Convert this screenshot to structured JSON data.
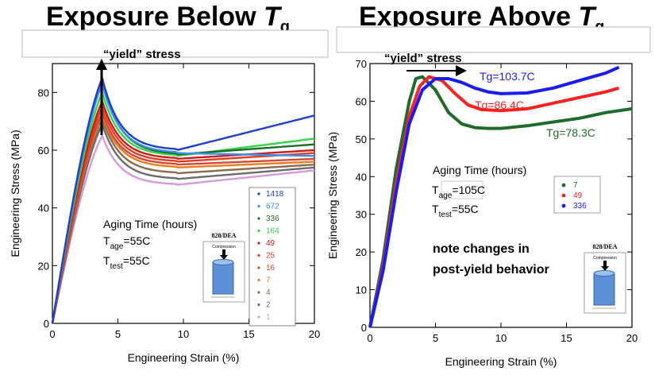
{
  "titles": {
    "left": {
      "main": "Exposure Below ",
      "var": "T",
      "sub": "g"
    },
    "right": {
      "main": "Exposure Above ",
      "var": "T",
      "sub": "g"
    }
  },
  "chart_data": [
    {
      "type": "line",
      "xlabel": "Engineering Strain (%)",
      "ylabel": "Engineering Stress (MPa)",
      "xlim": [
        0,
        20
      ],
      "ylim": [
        0,
        90
      ],
      "xticks": [
        "0",
        "5",
        "10",
        "15",
        "20"
      ],
      "yticks": [
        "0",
        "20",
        "40",
        "60",
        "80"
      ],
      "grid": false,
      "legend_position": "bottom-right",
      "annotations": {
        "yield": "“yield” stress",
        "aging": "Aging Time (hours)",
        "tage_prefix": "T",
        "tage_sub": "age",
        "tage_val": "=55C",
        "ttest_prefix": "T",
        "ttest_sub": "test",
        "ttest_val": "=55C",
        "specimen_label": "828/DEA",
        "compression": "Compression"
      },
      "series": [
        {
          "name": "1418",
          "color": "#1f3fd0",
          "peak": 85,
          "min_y": 60,
          "end": 72
        },
        {
          "name": "672",
          "color": "#3a90e6",
          "peak": 83,
          "min_y": 59,
          "end": 58
        },
        {
          "name": "336",
          "color": "#1e6b2b",
          "peak": 84,
          "min_y": 58.5,
          "end": 62
        },
        {
          "name": "164",
          "color": "#33d645",
          "peak": 80,
          "min_y": 58,
          "end": 64
        },
        {
          "name": "49",
          "color": "#c81e1e",
          "peak": 77,
          "min_y": 57,
          "end": 60
        },
        {
          "name": "25",
          "color": "#e83a1f",
          "peak": 75,
          "min_y": 56,
          "end": 59
        },
        {
          "name": "16",
          "color": "#d04838",
          "peak": 73,
          "min_y": 55,
          "end": 57
        },
        {
          "name": "7",
          "color": "#f07a1e",
          "peak": 72,
          "min_y": 54,
          "end": 56
        },
        {
          "name": "4",
          "color": "#8a6a4a",
          "peak": 71,
          "min_y": 52,
          "end": 55
        },
        {
          "name": "2",
          "color": "#6b6b6b",
          "peak": 69,
          "min_y": 50,
          "end": 54
        },
        {
          "name": "1",
          "color": "#d59ad8",
          "peak": 65,
          "min_y": 48,
          "end": 53
        }
      ]
    },
    {
      "type": "line",
      "xlabel": "Engineering Strain (%)",
      "ylabel": "Engineering Stress (MPa)",
      "xlim": [
        0,
        20
      ],
      "ylim": [
        0,
        70
      ],
      "xticks": [
        "0",
        "5",
        "10",
        "15",
        "20"
      ],
      "yticks": [
        "0",
        "10",
        "20",
        "30",
        "40",
        "50",
        "60",
        "70"
      ],
      "grid": false,
      "legend_position": "middle-right",
      "annotations": {
        "yield": "“yield” stress",
        "aging": "Aging Time (hours)",
        "tage_prefix": "T",
        "tage_sub": "age",
        "tage_val": "=105C",
        "ttest_prefix": "T",
        "ttest_sub": "test",
        "ttest_val": "=55C",
        "note1": "note changes in",
        "note2": "post-yield behavior",
        "specimen_label": "828/DEA",
        "compression": "Compression"
      },
      "series": [
        {
          "name": "7",
          "color": "#1e6b2b",
          "tg_label": "Tg=78.3C",
          "points": [
            [
              0,
              0
            ],
            [
              1,
              18
            ],
            [
              2,
              42
            ],
            [
              3,
              60
            ],
            [
              3.5,
              66
            ],
            [
              4,
              66.5
            ],
            [
              5,
              63
            ],
            [
              6,
              57
            ],
            [
              7,
              54
            ],
            [
              8,
              53
            ],
            [
              9,
              52.8
            ],
            [
              10,
              52.8
            ],
            [
              12,
              53.5
            ],
            [
              14,
              54.5
            ],
            [
              16,
              55.5
            ],
            [
              18,
              57
            ],
            [
              20,
              58
            ]
          ]
        },
        {
          "name": "49",
          "color": "#ff2020",
          "tg_label": "Tg=86.4C",
          "points": [
            [
              0,
              0
            ],
            [
              1,
              16
            ],
            [
              2,
              38
            ],
            [
              3,
              56
            ],
            [
              3.8,
              64
            ],
            [
              4.5,
              66.5
            ],
            [
              5.5,
              65.5
            ],
            [
              6.5,
              62
            ],
            [
              7.5,
              59
            ],
            [
              8.5,
              57.8
            ],
            [
              10,
              57.5
            ],
            [
              12,
              58
            ],
            [
              14,
              59.5
            ],
            [
              16,
              61
            ],
            [
              18,
              62.5
            ],
            [
              19,
              63.5
            ]
          ]
        },
        {
          "name": "336",
          "color": "#1a1aff",
          "tg_label": "Tg=103.7C",
          "points": [
            [
              0,
              0
            ],
            [
              1,
              15
            ],
            [
              2,
              36
            ],
            [
              3,
              54
            ],
            [
              4,
              63
            ],
            [
              5,
              66
            ],
            [
              6,
              66
            ],
            [
              7,
              65
            ],
            [
              8,
              63.5
            ],
            [
              9,
              62.5
            ],
            [
              10,
              62
            ],
            [
              12,
              62.2
            ],
            [
              14,
              63.5
            ],
            [
              16,
              65.5
            ],
            [
              18,
              67.5
            ],
            [
              19,
              69
            ]
          ]
        }
      ]
    }
  ]
}
